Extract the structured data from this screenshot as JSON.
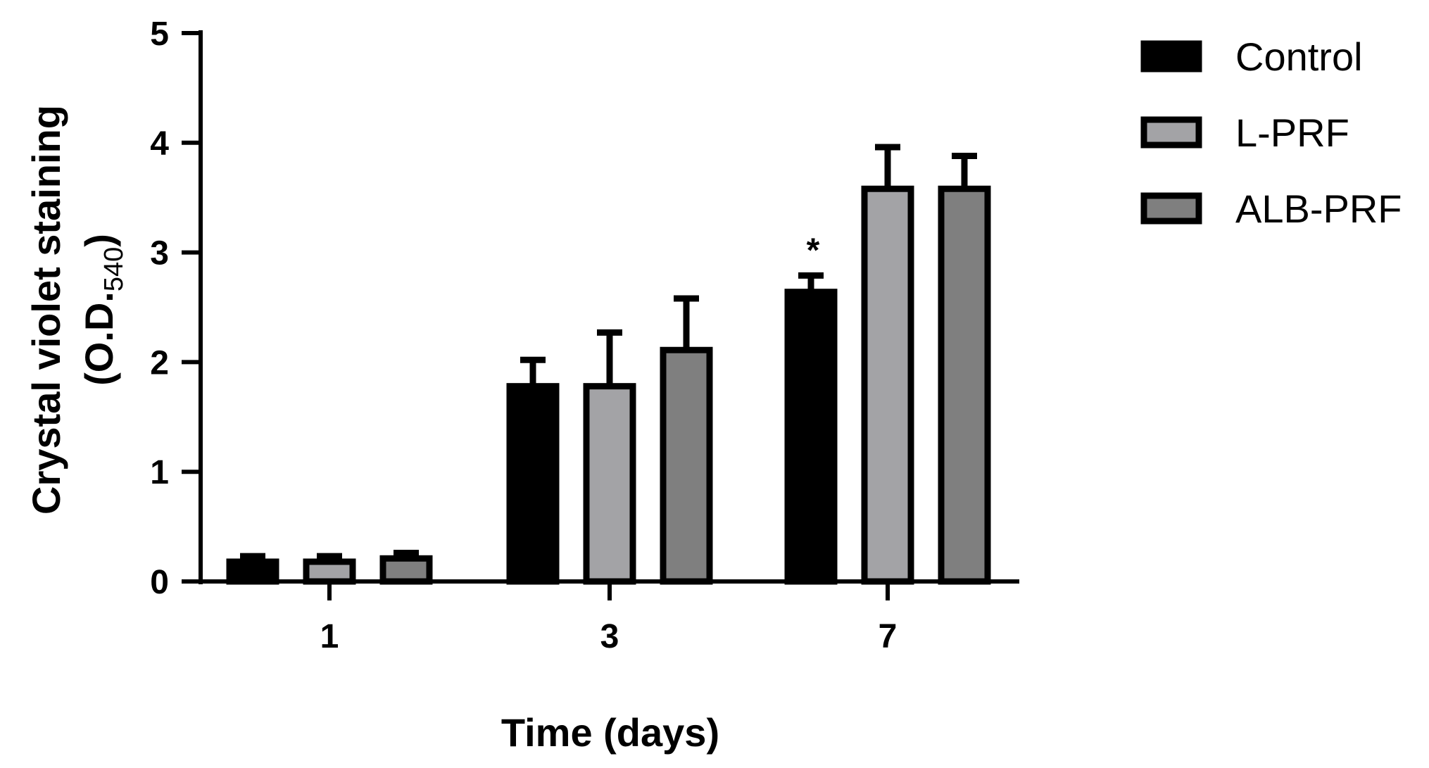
{
  "chart_data": {
    "type": "bar",
    "xlabel": "Time (days)",
    "ylabel_line1": "Crystal violet staining",
    "ylabel_line2_prefix": "(O.D.",
    "ylabel_line2_subscript": "540",
    "ylabel_line2_suffix": ")",
    "categories": [
      "1",
      "3",
      "7"
    ],
    "ylim": [
      0,
      5
    ],
    "yticks": [
      0,
      1,
      2,
      3,
      4,
      5
    ],
    "grid": false,
    "legend_position": "top-right",
    "series": [
      {
        "name": "Control",
        "color": "#000000",
        "values": [
          0.18,
          1.78,
          2.64
        ],
        "errors": [
          0.05,
          0.24,
          0.15
        ]
      },
      {
        "name": "L-PRF",
        "color": "#a3a3a6",
        "values": [
          0.18,
          1.78,
          3.58
        ],
        "errors": [
          0.05,
          0.49,
          0.38
        ]
      },
      {
        "name": "ALB-PRF",
        "color": "#7f7f7f",
        "values": [
          0.21,
          2.11,
          3.58
        ],
        "errors": [
          0.05,
          0.47,
          0.3
        ]
      }
    ],
    "annotations": [
      {
        "text": "*",
        "category": "7",
        "series": "Control"
      }
    ]
  }
}
